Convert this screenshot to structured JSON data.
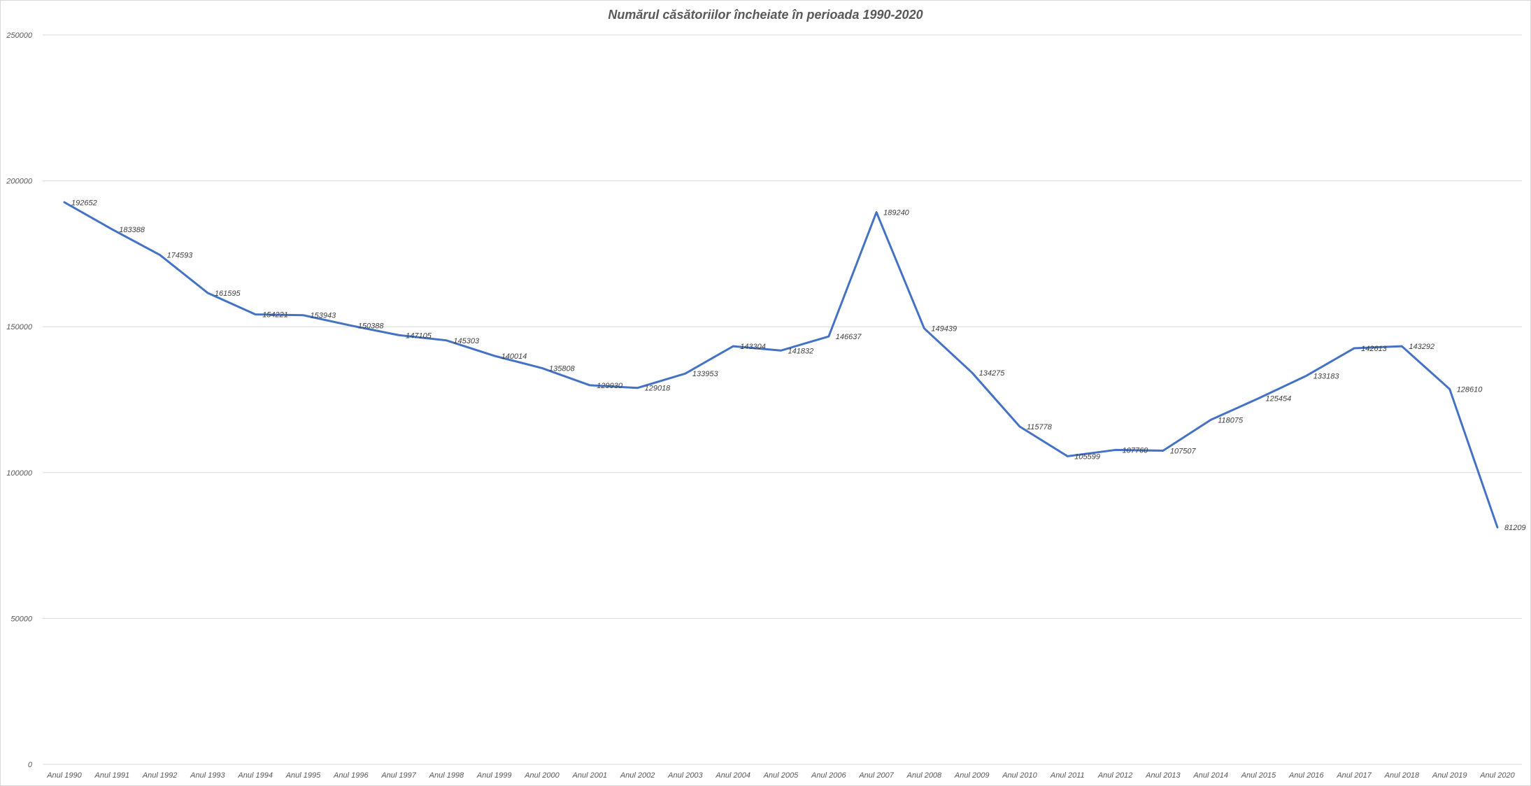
{
  "chart_data": {
    "type": "line",
    "title": "Numărul căsătoriilor încheiate în perioada 1990-2020",
    "xlabel": "",
    "ylabel": "",
    "ylim": [
      0,
      250000
    ],
    "yticks": [
      "0",
      "50000",
      "100000",
      "150000",
      "200000",
      "250000"
    ],
    "grid": true,
    "legend": "none",
    "line_color": "#4472C4",
    "categories": [
      "Anul 1990",
      "Anul 1991",
      "Anul 1992",
      "Anul 1993",
      "Anul 1994",
      "Anul 1995",
      "Anul 1996",
      "Anul 1997",
      "Anul 1998",
      "Anul 1999",
      "Anul 2000",
      "Anul 2001",
      "Anul 2002",
      "Anul 2003",
      "Anul 2004",
      "Anul 2005",
      "Anul 2006",
      "Anul 2007",
      "Anul 2008",
      "Anul 2009",
      "Anul 2010",
      "Anul 2011",
      "Anul 2012",
      "Anul 2013",
      "Anul 2014",
      "Anul 2015",
      "Anul 2016",
      "Anul 2017",
      "Anul 2018",
      "Anul 2019",
      "Anul 2020"
    ],
    "series": [
      {
        "values": [
          192652,
          183388,
          174593,
          161595,
          154221,
          153943,
          150388,
          147105,
          145303,
          140014,
          135808,
          129930,
          129018,
          133953,
          143304,
          141832,
          146637,
          189240,
          149439,
          134275,
          115778,
          105599,
          107760,
          107507,
          118075,
          125454,
          133183,
          142613,
          143292,
          128610,
          81209
        ]
      }
    ]
  }
}
